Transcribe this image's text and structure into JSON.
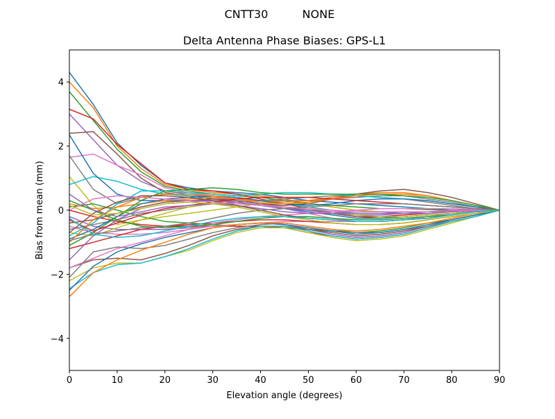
{
  "figure": {
    "suptitle_left": "CNTT30",
    "suptitle_right": "NONE"
  },
  "chart_data": {
    "type": "line",
    "title": "Delta Antenna Phase Biases: GPS-L1",
    "xlabel": "Elevation angle (degrees)",
    "ylabel": "Bias from mean (mm)",
    "xlim": [
      0,
      90
    ],
    "ylim": [
      -5,
      5
    ],
    "xticks": [
      0,
      10,
      20,
      30,
      40,
      50,
      60,
      70,
      80,
      90
    ],
    "yticks": [
      -4,
      -2,
      0,
      2,
      4
    ],
    "xtick_labels": [
      "0",
      "10",
      "20",
      "30",
      "40",
      "50",
      "60",
      "70",
      "80",
      "90"
    ],
    "ytick_labels": [
      "−4",
      "−2",
      "0",
      "2",
      "4"
    ],
    "grid": false,
    "legend": "none",
    "colors": [
      "#1f77b4",
      "#ff7f0e",
      "#2ca02c",
      "#d62728",
      "#9467bd",
      "#8c564b",
      "#e377c2",
      "#7f7f7f",
      "#bcbd22",
      "#17becf"
    ],
    "x": [
      0,
      5,
      10,
      15,
      20,
      25,
      30,
      35,
      40,
      45,
      50,
      55,
      60,
      65,
      70,
      75,
      80,
      85,
      90
    ],
    "series": [
      {
        "values": [
          4.3,
          3.3,
          2.1,
          1.4,
          0.85,
          0.7,
          0.6,
          0.55,
          0.5,
          0.4,
          0.3,
          0.25,
          0.2,
          0.15,
          0.1,
          0.05,
          0.0,
          0.0,
          0.0
        ]
      },
      {
        "values": [
          4.0,
          3.2,
          2.0,
          1.3,
          0.8,
          0.65,
          0.55,
          0.5,
          0.45,
          0.35,
          0.2,
          0.1,
          0.0,
          -0.05,
          -0.05,
          -0.05,
          -0.05,
          -0.02,
          0.0
        ]
      },
      {
        "values": [
          3.7,
          2.8,
          1.9,
          1.2,
          0.75,
          0.6,
          0.5,
          0.45,
          0.4,
          0.3,
          0.2,
          0.15,
          0.1,
          0.05,
          0.05,
          0.02,
          0.0,
          0.0,
          0.0
        ]
      },
      {
        "values": [
          3.15,
          2.85,
          2.05,
          1.45,
          0.85,
          0.65,
          0.6,
          0.5,
          0.35,
          0.2,
          0.05,
          -0.1,
          -0.2,
          -0.2,
          -0.15,
          -0.1,
          -0.05,
          -0.02,
          0.0
        ]
      },
      {
        "values": [
          3.0,
          2.2,
          1.4,
          0.9,
          0.6,
          0.5,
          0.4,
          0.3,
          0.2,
          0.1,
          0.0,
          -0.1,
          -0.15,
          -0.15,
          -0.1,
          -0.1,
          -0.05,
          -0.02,
          0.0
        ]
      },
      {
        "values": [
          2.4,
          2.45,
          1.75,
          1.0,
          0.55,
          0.45,
          0.35,
          0.25,
          0.15,
          0.05,
          0.0,
          -0.1,
          -0.2,
          -0.25,
          -0.2,
          -0.15,
          -0.1,
          -0.05,
          0.0
        ]
      },
      {
        "values": [
          1.65,
          1.75,
          1.4,
          1.1,
          0.7,
          0.55,
          0.45,
          0.35,
          0.2,
          0.05,
          -0.1,
          -0.25,
          -0.35,
          -0.35,
          -0.3,
          -0.2,
          -0.1,
          -0.05,
          0.0
        ]
      },
      {
        "values": [
          1.7,
          0.65,
          0.2,
          0.4,
          0.5,
          0.45,
          0.4,
          0.35,
          0.3,
          0.3,
          0.3,
          0.35,
          0.4,
          0.45,
          0.45,
          0.35,
          0.25,
          0.1,
          0.0
        ]
      },
      {
        "values": [
          1.05,
          0.15,
          -0.45,
          -0.3,
          -0.2,
          -0.1,
          0.0,
          0.1,
          0.2,
          0.2,
          0.2,
          0.1,
          0.0,
          -0.05,
          -0.05,
          -0.05,
          -0.05,
          -0.02,
          0.0
        ]
      },
      {
        "values": [
          0.8,
          1.05,
          0.9,
          0.65,
          0.5,
          0.45,
          0.4,
          0.35,
          0.3,
          0.2,
          0.1,
          0.0,
          -0.1,
          -0.1,
          -0.1,
          -0.05,
          -0.05,
          -0.02,
          0.0
        ]
      },
      {
        "values": [
          2.35,
          1.15,
          0.5,
          0.3,
          0.3,
          0.3,
          0.3,
          0.25,
          0.15,
          0.05,
          -0.05,
          -0.15,
          -0.25,
          -0.25,
          -0.2,
          -0.15,
          -0.1,
          -0.05,
          0.0
        ]
      },
      {
        "values": [
          0.2,
          0.05,
          0.1,
          0.2,
          0.3,
          0.35,
          0.4,
          0.35,
          0.3,
          0.25,
          0.3,
          0.4,
          0.5,
          0.55,
          0.55,
          0.45,
          0.3,
          0.15,
          0.0
        ]
      },
      {
        "values": [
          0.1,
          0.2,
          0.0,
          -0.2,
          -0.35,
          -0.4,
          -0.45,
          -0.5,
          -0.5,
          -0.55,
          -0.6,
          -0.65,
          -0.7,
          -0.65,
          -0.55,
          -0.4,
          -0.3,
          -0.15,
          0.0
        ]
      },
      {
        "values": [
          0.0,
          -0.2,
          -0.35,
          -0.45,
          -0.5,
          -0.5,
          -0.5,
          -0.5,
          -0.5,
          -0.55,
          -0.7,
          -0.8,
          -0.9,
          -0.85,
          -0.75,
          -0.55,
          -0.35,
          -0.2,
          0.0
        ]
      },
      {
        "values": [
          -0.2,
          -0.5,
          -0.6,
          -0.6,
          -0.6,
          -0.55,
          -0.5,
          -0.45,
          -0.4,
          -0.45,
          -0.6,
          -0.75,
          -0.85,
          -0.8,
          -0.7,
          -0.5,
          -0.3,
          -0.15,
          0.0
        ]
      },
      {
        "values": [
          -0.4,
          -0.3,
          -0.1,
          0.1,
          0.25,
          0.3,
          0.35,
          0.3,
          0.2,
          0.15,
          0.2,
          0.35,
          0.5,
          0.6,
          0.65,
          0.55,
          0.4,
          0.2,
          0.0
        ]
      },
      {
        "values": [
          -0.5,
          -0.7,
          -0.75,
          -0.75,
          -0.7,
          -0.6,
          -0.5,
          -0.45,
          -0.4,
          -0.35,
          -0.35,
          -0.35,
          -0.35,
          -0.35,
          -0.3,
          -0.25,
          -0.15,
          -0.05,
          0.0
        ]
      },
      {
        "values": [
          -0.6,
          -0.45,
          -0.3,
          -0.1,
          0.0,
          0.1,
          0.2,
          0.25,
          0.3,
          0.35,
          0.4,
          0.45,
          0.45,
          0.4,
          0.35,
          0.25,
          0.15,
          0.05,
          0.0
        ]
      },
      {
        "values": [
          -0.7,
          -0.8,
          -0.55,
          -0.3,
          -0.1,
          0.1,
          0.2,
          0.2,
          0.15,
          0.1,
          0.05,
          -0.05,
          -0.15,
          -0.2,
          -0.2,
          -0.15,
          -0.1,
          -0.05,
          0.0
        ]
      },
      {
        "values": [
          -0.8,
          -0.4,
          0.2,
          0.6,
          0.6,
          0.55,
          0.5,
          0.45,
          0.5,
          0.55,
          0.55,
          0.5,
          0.45,
          0.4,
          0.35,
          0.3,
          0.2,
          0.1,
          0.0
        ]
      },
      {
        "values": [
          -0.9,
          -0.6,
          -0.2,
          0.2,
          0.35,
          0.4,
          0.45,
          0.4,
          0.3,
          0.2,
          0.15,
          0.2,
          0.3,
          0.35,
          0.35,
          0.3,
          0.2,
          0.1,
          0.0
        ]
      },
      {
        "values": [
          -1.0,
          -0.3,
          0.1,
          0.4,
          0.5,
          0.5,
          0.45,
          0.35,
          0.25,
          0.2,
          0.25,
          0.35,
          0.45,
          0.5,
          0.5,
          0.45,
          0.3,
          0.15,
          0.0
        ]
      },
      {
        "values": [
          -1.1,
          -0.7,
          -0.2,
          0.3,
          0.6,
          0.65,
          0.7,
          0.65,
          0.55,
          0.5,
          0.5,
          0.5,
          0.5,
          0.5,
          0.45,
          0.4,
          0.3,
          0.15,
          0.0
        ]
      },
      {
        "values": [
          -1.2,
          -1.0,
          -0.8,
          -0.6,
          -0.5,
          -0.45,
          -0.4,
          -0.35,
          -0.3,
          -0.3,
          -0.35,
          -0.4,
          -0.45,
          -0.45,
          -0.4,
          -0.3,
          -0.2,
          -0.1,
          0.0
        ]
      },
      {
        "values": [
          -1.55,
          -0.8,
          -0.3,
          0.05,
          0.2,
          0.25,
          0.3,
          0.25,
          0.15,
          0.05,
          0.0,
          -0.05,
          -0.1,
          -0.1,
          -0.1,
          -0.05,
          -0.05,
          -0.02,
          0.0
        ]
      },
      {
        "values": [
          -1.8,
          -1.55,
          -1.5,
          -1.55,
          -1.35,
          -1.1,
          -0.8,
          -0.6,
          -0.5,
          -0.5,
          -0.6,
          -0.7,
          -0.8,
          -0.75,
          -0.65,
          -0.5,
          -0.35,
          -0.2,
          0.0
        ]
      },
      {
        "values": [
          -1.8,
          -1.5,
          -1.2,
          -1.0,
          -0.8,
          -0.6,
          -0.4,
          -0.3,
          -0.2,
          -0.15,
          -0.1,
          -0.05,
          0.0,
          0.05,
          0.05,
          0.05,
          0.05,
          0.02,
          0.0
        ]
      },
      {
        "values": [
          -2.1,
          -1.3,
          -1.15,
          -1.2,
          -1.1,
          -0.9,
          -0.7,
          -0.55,
          -0.45,
          -0.4,
          -0.5,
          -0.6,
          -0.7,
          -0.7,
          -0.6,
          -0.5,
          -0.35,
          -0.2,
          0.0
        ]
      },
      {
        "values": [
          -2.2,
          -1.8,
          -1.65,
          -1.65,
          -1.45,
          -1.25,
          -0.95,
          -0.7,
          -0.55,
          -0.55,
          -0.7,
          -0.85,
          -0.95,
          -0.9,
          -0.8,
          -0.6,
          -0.4,
          -0.2,
          0.0
        ]
      },
      {
        "values": [
          -2.45,
          -1.95,
          -1.7,
          -1.65,
          -1.45,
          -1.2,
          -0.9,
          -0.65,
          -0.5,
          -0.5,
          -0.65,
          -0.8,
          -0.9,
          -0.85,
          -0.75,
          -0.55,
          -0.35,
          -0.2,
          0.0
        ]
      },
      {
        "values": [
          -2.5,
          -1.75,
          -1.3,
          -1.05,
          -0.85,
          -0.7,
          -0.55,
          -0.45,
          -0.4,
          -0.45,
          -0.55,
          -0.65,
          -0.75,
          -0.7,
          -0.6,
          -0.45,
          -0.3,
          -0.15,
          0.0
        ]
      },
      {
        "values": [
          -2.7,
          -1.95,
          -1.55,
          -1.25,
          -1.0,
          -0.75,
          -0.55,
          -0.45,
          -0.4,
          -0.4,
          -0.5,
          -0.6,
          -0.65,
          -0.6,
          -0.5,
          -0.4,
          -0.25,
          -0.1,
          0.0
        ]
      },
      {
        "values": [
          0.3,
          0.0,
          -0.3,
          -0.5,
          -0.55,
          -0.5,
          -0.45,
          -0.35,
          -0.25,
          -0.2,
          -0.2,
          -0.25,
          -0.3,
          -0.3,
          -0.25,
          -0.2,
          -0.15,
          -0.05,
          0.0
        ]
      },
      {
        "values": [
          -0.3,
          -0.65,
          -0.4,
          -0.15,
          0.05,
          0.15,
          0.25,
          0.35,
          0.4,
          0.4,
          0.4,
          0.35,
          0.3,
          0.25,
          0.2,
          0.15,
          0.1,
          0.05,
          0.0
        ]
      },
      {
        "values": [
          0.5,
          0.0,
          -0.2,
          -0.05,
          0.1,
          0.15,
          0.2,
          0.15,
          0.05,
          -0.05,
          -0.1,
          -0.1,
          -0.1,
          -0.1,
          -0.05,
          -0.05,
          0.0,
          0.0,
          0.0
        ]
      },
      {
        "values": [
          -0.7,
          -0.1,
          0.25,
          0.45,
          0.45,
          0.4,
          0.3,
          0.15,
          0.0,
          -0.15,
          -0.25,
          -0.3,
          -0.35,
          -0.35,
          -0.3,
          -0.25,
          -0.15,
          -0.05,
          0.0
        ]
      },
      {
        "values": [
          0.0,
          0.35,
          0.45,
          0.4,
          0.35,
          0.3,
          0.25,
          0.2,
          0.15,
          0.1,
          0.05,
          0.0,
          -0.05,
          -0.05,
          -0.05,
          -0.05,
          -0.02,
          -0.01,
          0.0
        ]
      },
      {
        "values": [
          -0.95,
          -0.75,
          -0.65,
          -0.55,
          -0.5,
          -0.4,
          -0.25,
          -0.1,
          0.0,
          0.05,
          0.1,
          0.15,
          0.2,
          0.2,
          0.2,
          0.15,
          0.1,
          0.05,
          0.0
        ]
      },
      {
        "values": [
          0.15,
          -0.15,
          -0.1,
          0.05,
          0.2,
          0.25,
          0.2,
          0.1,
          -0.05,
          -0.2,
          -0.3,
          -0.4,
          -0.45,
          -0.45,
          -0.4,
          -0.3,
          -0.2,
          -0.1,
          0.0
        ]
      },
      {
        "values": [
          -0.25,
          -0.75,
          -0.85,
          -0.8,
          -0.65,
          -0.5,
          -0.35,
          -0.25,
          -0.2,
          -0.2,
          -0.25,
          -0.3,
          -0.35,
          -0.35,
          -0.3,
          -0.25,
          -0.15,
          -0.05,
          0.0
        ]
      }
    ]
  }
}
